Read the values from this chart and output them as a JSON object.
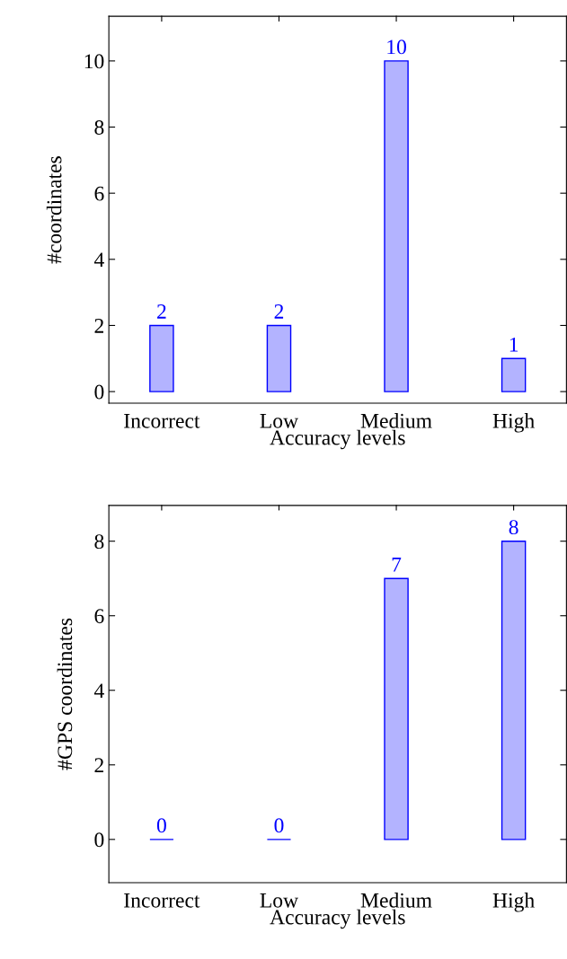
{
  "chart_data": [
    {
      "type": "bar",
      "categories": [
        "Incorrect",
        "Low",
        "Medium",
        "High"
      ],
      "values": [
        2,
        2,
        10,
        1
      ],
      "color": "#b3b3ff",
      "xlabel": "Accuracy levels",
      "ylabel": "#coordinates",
      "ylim": [
        -0.35,
        11.35
      ],
      "yticks": [
        0,
        2,
        4,
        6,
        8,
        10
      ],
      "data_labels": true,
      "grid": false,
      "legend": false
    },
    {
      "type": "bar",
      "categories": [
        "Incorrect",
        "Low",
        "Medium",
        "High"
      ],
      "values": [
        0,
        0,
        7,
        8
      ],
      "colors": [
        "#0000ff",
        "#0000ff",
        "#b3b3ff",
        "#b3b3ff"
      ],
      "xlabel": "Accuracy levels",
      "ylabel": "#GPS coordinates",
      "ylim": [
        -1.16,
        8.96
      ],
      "yticks": [
        0,
        2,
        4,
        6,
        8
      ],
      "data_labels": true,
      "grid": false,
      "legend": false
    }
  ]
}
